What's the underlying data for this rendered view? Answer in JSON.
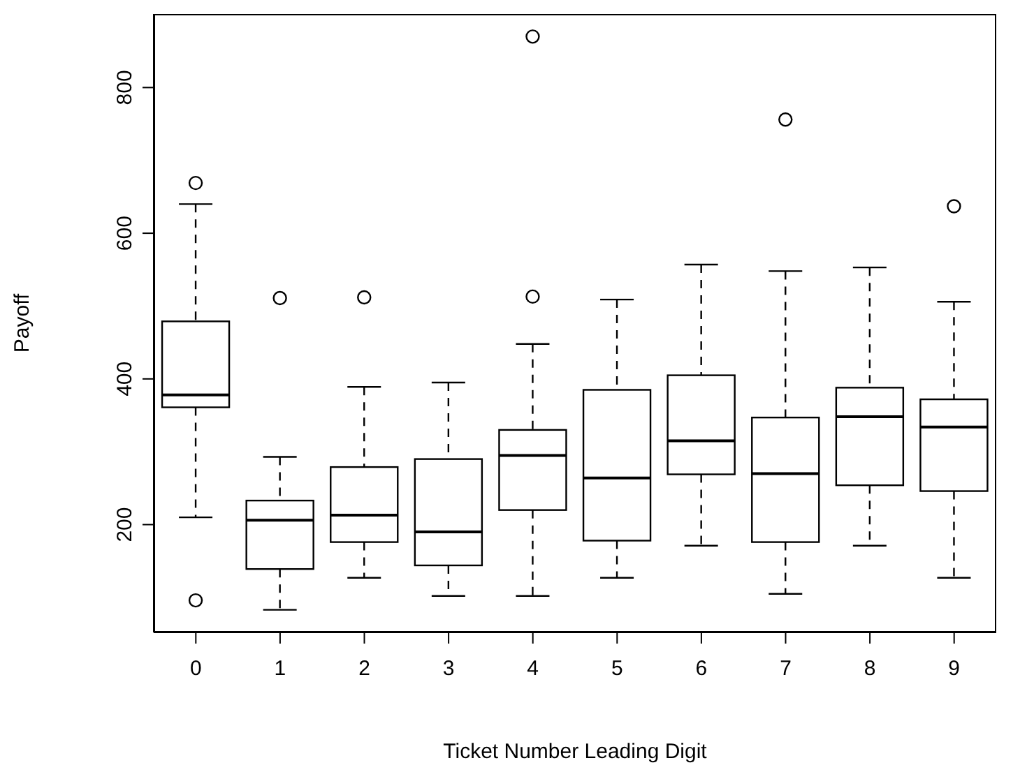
{
  "chart_data": {
    "type": "box",
    "xlabel": "Ticket Number Leading Digit",
    "ylabel": "Payoff",
    "categories": [
      "0",
      "1",
      "2",
      "3",
      "4",
      "5",
      "6",
      "7",
      "8",
      "9"
    ],
    "boxes": [
      {
        "low": 210,
        "q1": 361,
        "median": 378,
        "q3": 479,
        "high": 640,
        "outliers": [
          669,
          96
        ]
      },
      {
        "low": 83,
        "q1": 139,
        "median": 206,
        "q3": 233,
        "high": 293,
        "outliers": [
          511
        ]
      },
      {
        "low": 127,
        "q1": 176,
        "median": 213,
        "q3": 279,
        "high": 389,
        "outliers": [
          512
        ]
      },
      {
        "low": 102,
        "q1": 144,
        "median": 190,
        "q3": 290,
        "high": 395
      },
      {
        "low": 102,
        "q1": 220,
        "median": 295,
        "q3": 330,
        "high": 448,
        "outliers": [
          870,
          513
        ]
      },
      {
        "low": 127,
        "q1": 178,
        "median": 264,
        "q3": 385,
        "high": 509
      },
      {
        "low": 171,
        "q1": 269,
        "median": 315,
        "q3": 405,
        "high": 557
      },
      {
        "low": 105,
        "q1": 176,
        "median": 270,
        "q3": 347,
        "high": 548,
        "outliers": [
          756
        ]
      },
      {
        "low": 171,
        "q1": 254,
        "median": 348,
        "q3": 388,
        "high": 553
      },
      {
        "low": 127,
        "q1": 246,
        "median": 334,
        "q3": 372,
        "high": 506,
        "outliers": [
          637
        ]
      }
    ],
    "ylim": [
      52,
      901
    ],
    "yticks": [
      200,
      400,
      600,
      800
    ]
  }
}
